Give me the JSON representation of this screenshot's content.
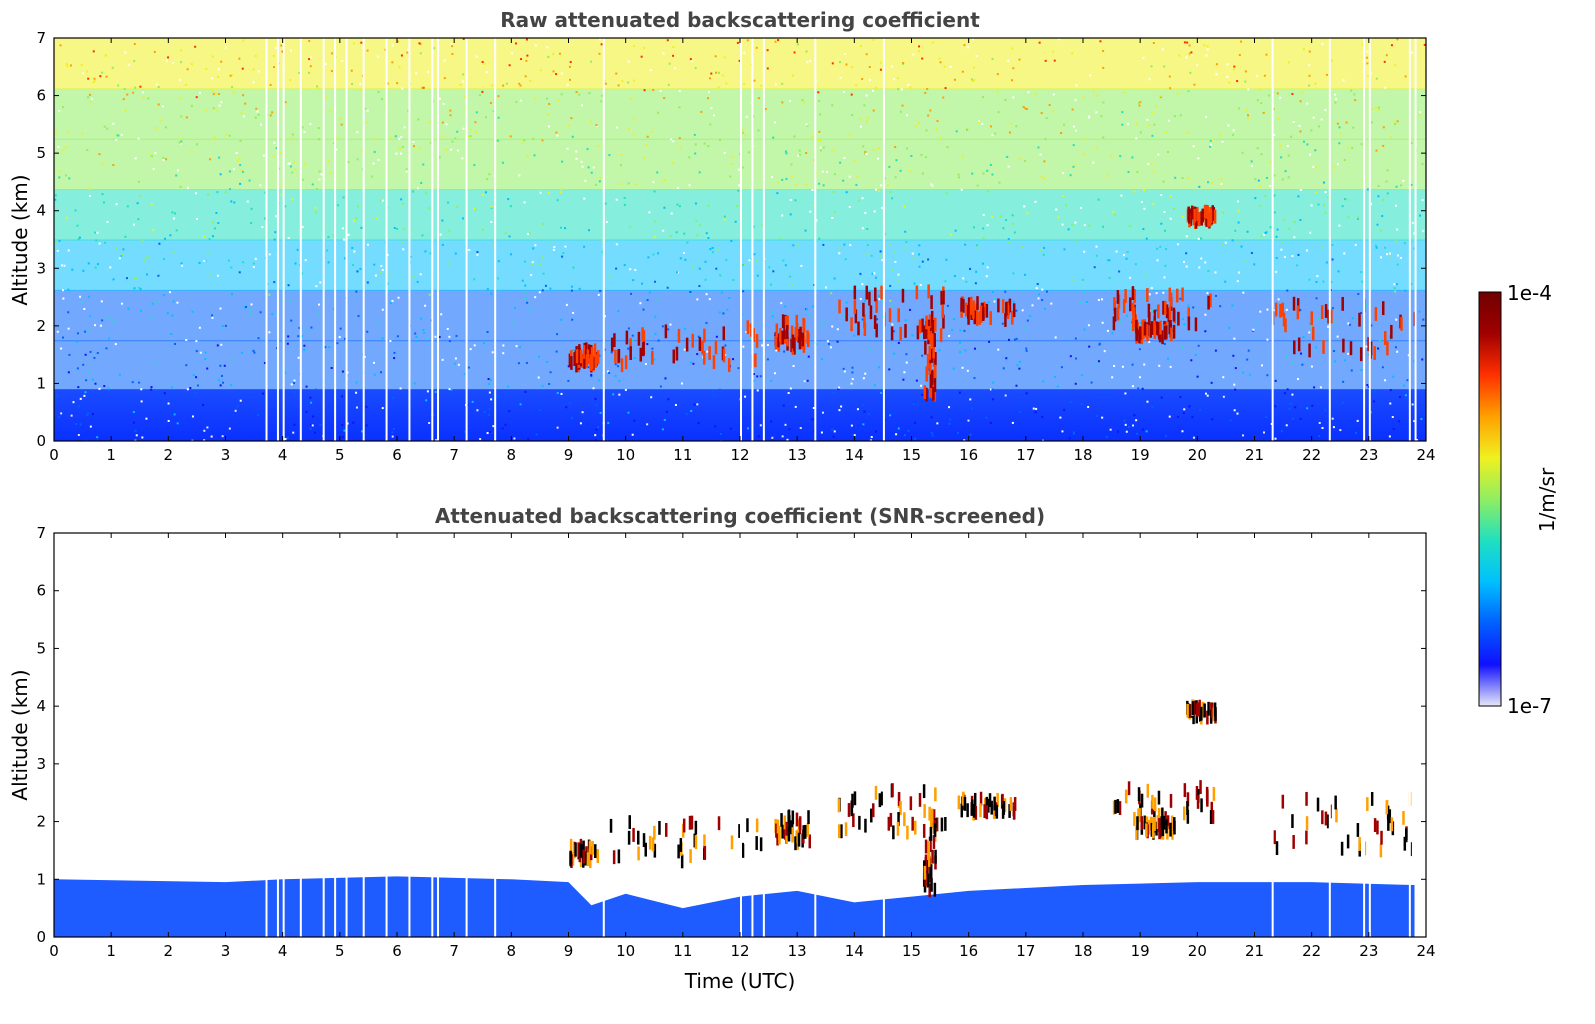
{
  "chart_data": [
    {
      "type": "heatmap",
      "title": "Raw attenuated backscattering coefficient",
      "xlabel": "",
      "ylabel": "Altitude (km)",
      "xlim": [
        0,
        24
      ],
      "ylim": [
        0,
        7
      ],
      "xticks": [
        "0",
        "1",
        "2",
        "3",
        "4",
        "5",
        "6",
        "7",
        "8",
        "9",
        "10",
        "11",
        "12",
        "13",
        "14",
        "15",
        "16",
        "17",
        "18",
        "19",
        "20",
        "21",
        "22",
        "23",
        "24"
      ],
      "yticks": [
        "0",
        "1",
        "2",
        "3",
        "4",
        "5",
        "6",
        "7"
      ],
      "screened": false,
      "missing_columns_utc": [
        3.7,
        3.9,
        4.0,
        4.3,
        4.7,
        4.9,
        5.1,
        5.4,
        5.8,
        6.2,
        6.6,
        6.7,
        7.2,
        7.7,
        9.6,
        12.0,
        12.2,
        12.4,
        13.3,
        14.5,
        21.3,
        22.3,
        22.9,
        23.0,
        23.7,
        23.8
      ],
      "cloud_layers": [
        {
          "t_start": 9.0,
          "t_end": 9.5,
          "bottom_km": 1.3,
          "top_km": 1.6
        },
        {
          "t_start": 9.6,
          "t_end": 12.4,
          "bottom_km": 1.3,
          "top_km": 2.0
        },
        {
          "t_start": 12.6,
          "t_end": 13.2,
          "bottom_km": 1.6,
          "top_km": 2.1
        },
        {
          "t_start": 13.7,
          "t_end": 15.6,
          "bottom_km": 1.8,
          "top_km": 2.6
        },
        {
          "t_start": 15.2,
          "t_end": 15.4,
          "bottom_km": 0.8,
          "top_km": 2.2
        },
        {
          "t_start": 15.8,
          "t_end": 16.8,
          "bottom_km": 2.1,
          "top_km": 2.4
        },
        {
          "t_start": 18.5,
          "t_end": 20.3,
          "bottom_km": 2.0,
          "top_km": 2.6
        },
        {
          "t_start": 18.9,
          "t_end": 19.6,
          "bottom_km": 1.8,
          "top_km": 2.0
        },
        {
          "t_start": 19.8,
          "t_end": 20.3,
          "bottom_km": 3.8,
          "top_km": 4.0
        },
        {
          "t_start": 21.3,
          "t_end": 23.8,
          "bottom_km": 1.5,
          "top_km": 2.4
        }
      ]
    },
    {
      "type": "heatmap",
      "title": "Attenuated backscattering coefficient (SNR-screened)",
      "xlabel": "Time (UTC)",
      "ylabel": "Altitude (km)",
      "xlim": [
        0,
        24
      ],
      "ylim": [
        0,
        7
      ],
      "xticks": [
        "0",
        "1",
        "2",
        "3",
        "4",
        "5",
        "6",
        "7",
        "8",
        "9",
        "10",
        "11",
        "12",
        "13",
        "14",
        "15",
        "16",
        "17",
        "18",
        "19",
        "20",
        "21",
        "22",
        "23",
        "24"
      ],
      "yticks": [
        "0",
        "1",
        "2",
        "3",
        "4",
        "5",
        "6",
        "7"
      ],
      "screened": true,
      "boundary_layer_top_km": [
        {
          "t": 0,
          "h": 1.0
        },
        {
          "t": 3,
          "h": 0.95
        },
        {
          "t": 4,
          "h": 1.0
        },
        {
          "t": 6,
          "h": 1.05
        },
        {
          "t": 8,
          "h": 1.0
        },
        {
          "t": 9,
          "h": 0.95
        },
        {
          "t": 9.4,
          "h": 0.55
        },
        {
          "t": 10,
          "h": 0.75
        },
        {
          "t": 11,
          "h": 0.5
        },
        {
          "t": 12,
          "h": 0.7
        },
        {
          "t": 13,
          "h": 0.8
        },
        {
          "t": 14,
          "h": 0.6
        },
        {
          "t": 15,
          "h": 0.7
        },
        {
          "t": 16,
          "h": 0.8
        },
        {
          "t": 18,
          "h": 0.9
        },
        {
          "t": 20,
          "h": 0.95
        },
        {
          "t": 22,
          "h": 0.95
        },
        {
          "t": 23.8,
          "h": 0.9
        }
      ]
    }
  ],
  "colorbar": {
    "label": "1/m/sr",
    "max_label": "1e-4",
    "min_label": "1e-7",
    "colors": [
      "#e8e8f8",
      "#1010ff",
      "#0060ff",
      "#00c0ff",
      "#20e0c0",
      "#90ee60",
      "#f0f020",
      "#ffa000",
      "#ff3000",
      "#a00000",
      "#700000"
    ]
  }
}
